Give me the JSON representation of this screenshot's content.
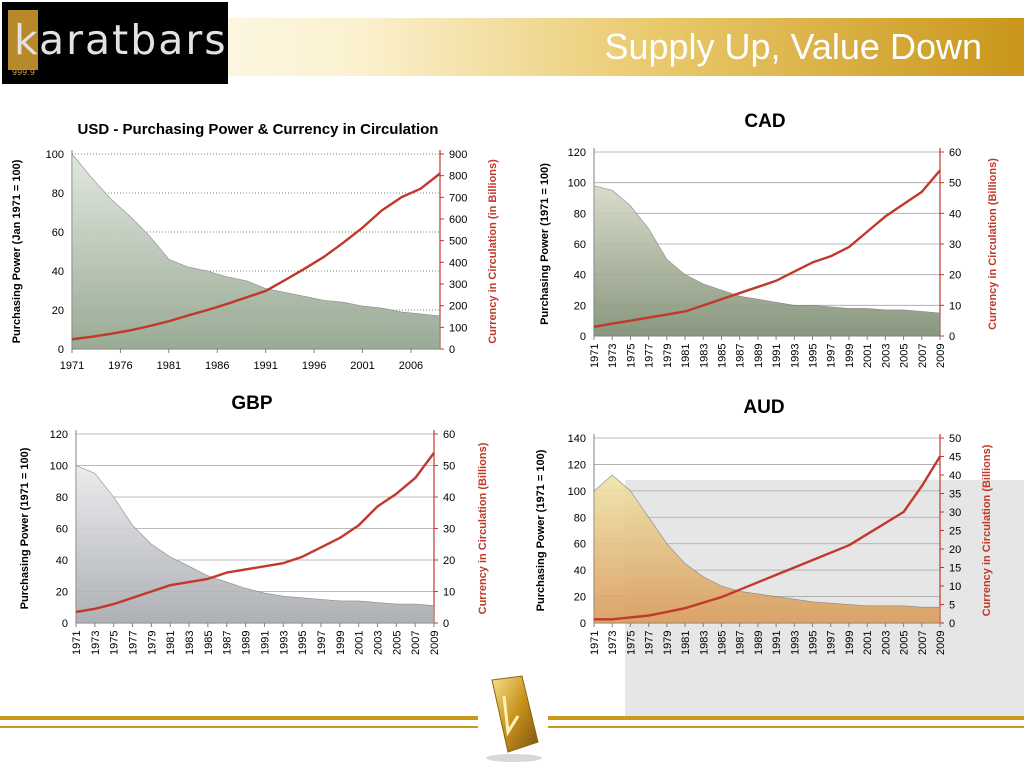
{
  "header": {
    "logo_text": "karatbars",
    "logo_fine": "999.9",
    "title": "Supply Up, Value Down"
  },
  "colors": {
    "gold": "#c99a1a",
    "line": "#c0392b",
    "grid": "#a6a6a6"
  },
  "chart_data": [
    {
      "id": "usd",
      "type": "area",
      "title": "USD - Purchasing Power & Currency in Circulation",
      "ylabel": "Purchasing Power (Jan 1971 = 100)",
      "y2label": "Currency in Circulation (in Billions)",
      "ylim": [
        0,
        100
      ],
      "y2lim": [
        0,
        900
      ],
      "yticks": [
        "0",
        "20",
        "40",
        "60",
        "80",
        "100"
      ],
      "y2ticks": [
        "0",
        "100",
        "200",
        "300",
        "400",
        "500",
        "600",
        "700",
        "800",
        "900"
      ],
      "xticks": [
        "1971",
        "1976",
        "1981",
        "1986",
        "1991",
        "1996",
        "2001",
        "2006"
      ],
      "x_range": [
        1971,
        2009
      ],
      "grid": "dotted",
      "series": [
        {
          "x": [
            1971,
            1973,
            1975,
            1977,
            1979,
            1981,
            1983,
            1985,
            1987,
            1989,
            1991,
            1993,
            1995,
            1997,
            1999,
            2001,
            2003,
            2005,
            2007,
            2009
          ],
          "values": [
            100,
            88,
            77,
            68,
            58,
            46,
            42,
            40,
            37,
            35,
            31,
            29,
            27,
            25,
            24,
            22,
            21,
            19,
            18,
            17
          ]
        },
        {
          "x": [
            1971,
            1973,
            1975,
            1977,
            1979,
            1981,
            1983,
            1985,
            1987,
            1989,
            1991,
            1993,
            1995,
            1997,
            1999,
            2001,
            2003,
            2005,
            2007,
            2009
          ],
          "values": [
            45,
            56,
            70,
            86,
            106,
            128,
            155,
            180,
            208,
            238,
            268,
            318,
            370,
            425,
            490,
            560,
            640,
            700,
            740,
            810
          ]
        }
      ]
    },
    {
      "id": "cad",
      "type": "area",
      "title": "CAD",
      "ylabel": "Purchasing Power (1971 = 100)",
      "y2label": "Currency in Circulation (Billions)",
      "ylim": [
        0,
        120
      ],
      "y2lim": [
        0,
        60
      ],
      "yticks": [
        "0",
        "20",
        "40",
        "60",
        "80",
        "100",
        "120"
      ],
      "y2ticks": [
        "0",
        "10",
        "20",
        "30",
        "40",
        "50",
        "60"
      ],
      "xticks": [
        "1971",
        "1973",
        "1975",
        "1977",
        "1979",
        "1981",
        "1983",
        "1985",
        "1987",
        "1989",
        "1991",
        "1993",
        "1995",
        "1997",
        "1999",
        "2001",
        "2003",
        "2005",
        "2007",
        "2009"
      ],
      "x_range": [
        1971,
        2009
      ],
      "grid": "solid",
      "series": [
        {
          "x": [
            1971,
            1973,
            1975,
            1977,
            1979,
            1981,
            1983,
            1985,
            1987,
            1989,
            1991,
            1993,
            1995,
            1997,
            1999,
            2001,
            2003,
            2005,
            2007,
            2009
          ],
          "values": [
            98,
            95,
            85,
            70,
            50,
            40,
            34,
            30,
            26,
            24,
            22,
            20,
            20,
            19,
            18,
            18,
            17,
            17,
            16,
            15
          ]
        },
        {
          "x": [
            1971,
            1973,
            1975,
            1977,
            1979,
            1981,
            1983,
            1985,
            1987,
            1989,
            1991,
            1993,
            1995,
            1997,
            1999,
            2001,
            2003,
            2005,
            2007,
            2009
          ],
          "values": [
            3,
            4,
            5,
            6,
            7,
            8,
            10,
            12,
            14,
            16,
            18,
            21,
            24,
            26,
            29,
            34,
            39,
            43,
            47,
            54
          ]
        }
      ]
    },
    {
      "id": "gbp",
      "type": "area",
      "title": "GBP",
      "ylabel": "Purchasing Power (1971 = 100)",
      "y2label": "Currency in Circulation (Billions)",
      "ylim": [
        0,
        120
      ],
      "y2lim": [
        0,
        60
      ],
      "yticks": [
        "0",
        "20",
        "40",
        "60",
        "80",
        "100",
        "120"
      ],
      "y2ticks": [
        "0",
        "10",
        "20",
        "30",
        "40",
        "50",
        "60"
      ],
      "xticks": [
        "1971",
        "1973",
        "1975",
        "1977",
        "1979",
        "1981",
        "1983",
        "1985",
        "1987",
        "1989",
        "1991",
        "1993",
        "1995",
        "1997",
        "1999",
        "2001",
        "2003",
        "2005",
        "2007",
        "2009"
      ],
      "x_range": [
        1971,
        2009
      ],
      "grid": "solid",
      "series": [
        {
          "x": [
            1971,
            1973,
            1975,
            1977,
            1979,
            1981,
            1983,
            1985,
            1987,
            1989,
            1991,
            1993,
            1995,
            1997,
            1999,
            2001,
            2003,
            2005,
            2007,
            2009
          ],
          "values": [
            100,
            95,
            80,
            62,
            50,
            42,
            36,
            30,
            26,
            22,
            19,
            17,
            16,
            15,
            14,
            14,
            13,
            12,
            12,
            11
          ]
        },
        {
          "x": [
            1971,
            1973,
            1975,
            1977,
            1979,
            1981,
            1983,
            1985,
            1987,
            1989,
            1991,
            1993,
            1995,
            1997,
            1999,
            2001,
            2003,
            2005,
            2007,
            2009
          ],
          "values": [
            3.5,
            4.5,
            6,
            8,
            10,
            12,
            13,
            14,
            16,
            17,
            18,
            19,
            21,
            24,
            27,
            31,
            37,
            41,
            46,
            54
          ]
        }
      ]
    },
    {
      "id": "aud",
      "type": "area",
      "title": "AUD",
      "ylabel": "Purchasing Power (1971 = 100)",
      "y2label": "Currency in Circulation (Billions)",
      "ylim": [
        0,
        140
      ],
      "y2lim": [
        0,
        50
      ],
      "yticks": [
        "0",
        "20",
        "40",
        "60",
        "80",
        "100",
        "120",
        "140"
      ],
      "y2ticks": [
        "0",
        "5",
        "10",
        "15",
        "20",
        "25",
        "30",
        "35",
        "40",
        "45",
        "50"
      ],
      "xticks": [
        "1971",
        "1973",
        "1975",
        "1977",
        "1979",
        "1981",
        "1983",
        "1985",
        "1987",
        "1989",
        "1991",
        "1993",
        "1995",
        "1997",
        "1999",
        "2001",
        "2003",
        "2005",
        "2007",
        "2009"
      ],
      "x_range": [
        1971,
        2009
      ],
      "grid": "solid",
      "series": [
        {
          "x": [
            1971,
            1973,
            1975,
            1977,
            1979,
            1981,
            1983,
            1985,
            1987,
            1989,
            1991,
            1993,
            1995,
            1997,
            1999,
            2001,
            2003,
            2005,
            2007,
            2009
          ],
          "values": [
            100,
            112,
            100,
            80,
            60,
            45,
            35,
            28,
            24,
            22,
            20,
            18,
            16,
            15,
            14,
            13,
            13,
            13,
            12,
            12
          ]
        },
        {
          "x": [
            1971,
            1973,
            1975,
            1977,
            1979,
            1981,
            1983,
            1985,
            1987,
            1989,
            1991,
            1993,
            1995,
            1997,
            1999,
            2001,
            2003,
            2005,
            2007,
            2009
          ],
          "values": [
            1,
            1,
            1.5,
            2,
            3,
            4,
            5.5,
            7,
            9,
            11,
            13,
            15,
            17,
            19,
            21,
            24,
            27,
            30,
            37,
            45
          ]
        }
      ]
    }
  ]
}
